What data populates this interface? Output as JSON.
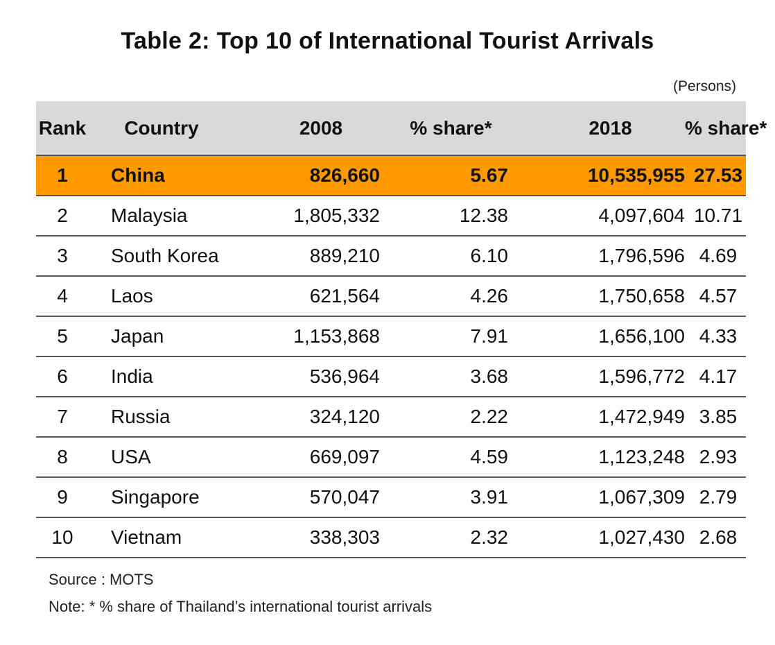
{
  "title": "Table 2: Top 10 of International Tourist Arrivals",
  "unit": "(Persons)",
  "columns": [
    "Rank",
    "Country",
    "2008",
    "% share*",
    "2018",
    "% share*"
  ],
  "rows": [
    {
      "rank": "1",
      "country": "China",
      "y2008": "826,660",
      "share2008": "5.67",
      "y2018": "10,535,955",
      "share2018": "27.53"
    },
    {
      "rank": "2",
      "country": "Malaysia",
      "y2008": "1,805,332",
      "share2008": "12.38",
      "y2018": "4,097,604",
      "share2018": "10.71"
    },
    {
      "rank": "3",
      "country": "South Korea",
      "y2008": "889,210",
      "share2008": "6.10",
      "y2018": "1,796,596",
      "share2018": "4.69"
    },
    {
      "rank": "4",
      "country": "Laos",
      "y2008": "621,564",
      "share2008": "4.26",
      "y2018": "1,750,658",
      "share2018": "4.57"
    },
    {
      "rank": "5",
      "country": "Japan",
      "y2008": "1,153,868",
      "share2008": "7.91",
      "y2018": "1,656,100",
      "share2018": "4.33"
    },
    {
      "rank": "6",
      "country": "India",
      "y2008": "536,964",
      "share2008": "3.68",
      "y2018": "1,596,772",
      "share2018": "4.17"
    },
    {
      "rank": "7",
      "country": "Russia",
      "y2008": "324,120",
      "share2008": "2.22",
      "y2018": "1,472,949",
      "share2018": "3.85"
    },
    {
      "rank": "8",
      "country": "USA",
      "y2008": "669,097",
      "share2008": "4.59",
      "y2018": "1,123,248",
      "share2018": "2.93"
    },
    {
      "rank": "9",
      "country": "Singapore",
      "y2008": "570,047",
      "share2008": "3.91",
      "y2018": "1,067,309",
      "share2018": "2.79"
    },
    {
      "rank": "10",
      "country": "Vietnam",
      "y2008": "338,303",
      "share2008": "2.32",
      "y2018": "1,027,430",
      "share2018": "2.68"
    }
  ],
  "highlight_color": "#ff9900",
  "header_color": "#d9d9d9",
  "source": "Source : MOTS",
  "note": "Note: * % share of Thailand’s international tourist arrivals"
}
